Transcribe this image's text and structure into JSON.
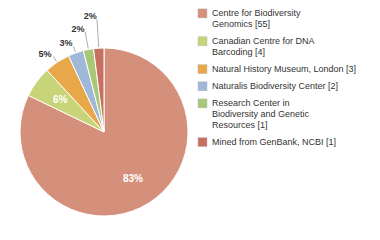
{
  "chart_data": {
    "type": "pie",
    "categories": [
      "Centre for Biodiversity\nGenomics [55]",
      "Canadian Centre for DNA\nBarcoding [4]",
      "Natural History Museum, London [3]",
      "Naturalis Biodiversity Center [2]",
      "Research Center in\nBiodiversity and Genetic\nResources [1]",
      "Mined from GenBank, NCBI [1]"
    ],
    "values": [
      83,
      6,
      5,
      3,
      2,
      2
    ],
    "value_labels": [
      "83%",
      "6%",
      "5%",
      "3%",
      "2%",
      "2%"
    ],
    "colors": [
      "#d4907a",
      "#c8d478",
      "#e8a84a",
      "#a0b8d8",
      "#a8c878",
      "#c87060"
    ],
    "data_labels": true,
    "legend": "right"
  }
}
